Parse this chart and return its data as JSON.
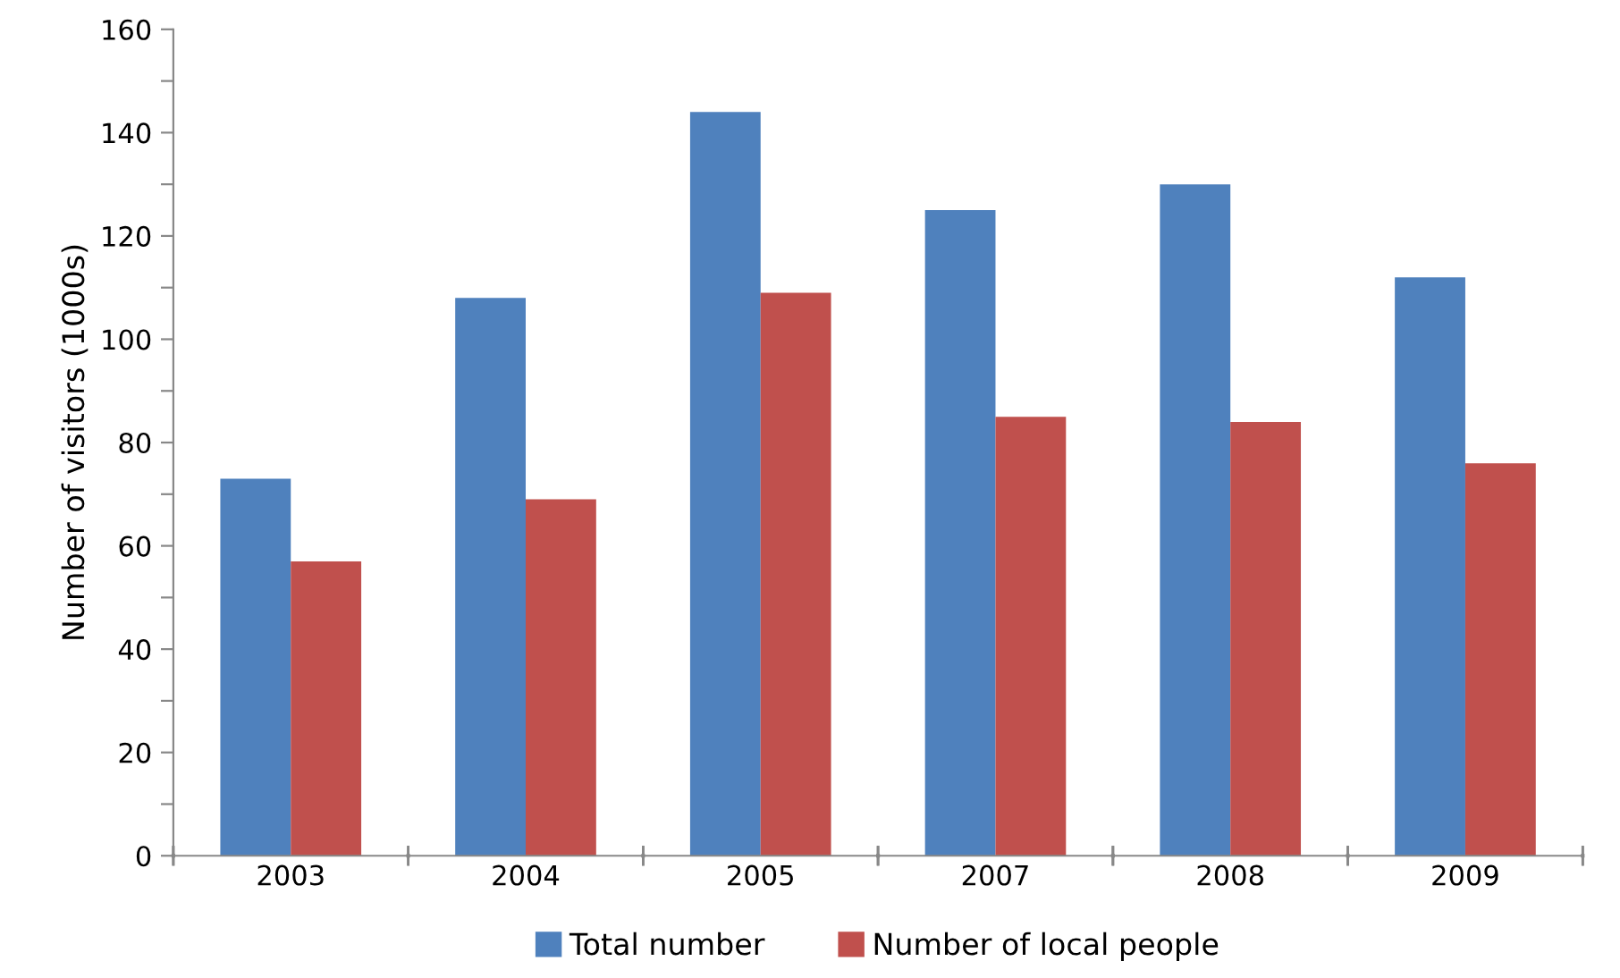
{
  "chart_data": {
    "type": "bar",
    "ylabel": "Number of visitors (1000s)",
    "categories": [
      "2003",
      "2004",
      "2005",
      "2007",
      "2008",
      "2009"
    ],
    "series": [
      {
        "name": "Total number",
        "color": "#4f81bd",
        "values": [
          73,
          108,
          144,
          125,
          130,
          112
        ]
      },
      {
        "name": "Number of local people",
        "color": "#c0504d",
        "values": [
          57,
          69,
          109,
          85,
          84,
          76
        ]
      }
    ],
    "ylim": [
      0,
      160
    ],
    "yticks": [
      0,
      {
        "value": 10,
        "label": null
      },
      20,
      {
        "value": 30,
        "label": null
      },
      40,
      {
        "value": 50,
        "label": null
      },
      60,
      {
        "value": 70,
        "label": null
      },
      80,
      {
        "value": 90,
        "label": null
      },
      100,
      {
        "value": 110,
        "label": null
      },
      120,
      {
        "value": 130,
        "label": null
      },
      140,
      {
        "value": 150,
        "label": null
      },
      160
    ],
    "grid": false,
    "legend": "bottom"
  }
}
